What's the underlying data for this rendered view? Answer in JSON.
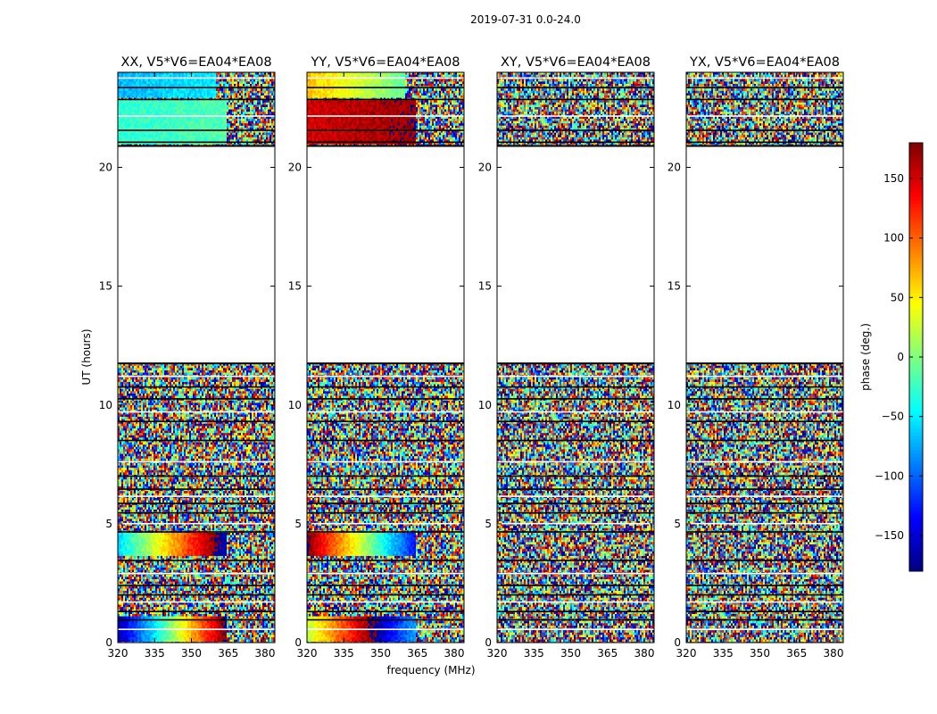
{
  "chart_data": {
    "type": "heatmap",
    "title": "2019-07-31 0.0-24.0",
    "xlabel": "frequency (MHz)",
    "ylabel": "UT (hours)",
    "xlim": [
      320,
      384
    ],
    "ylim": [
      0,
      24
    ],
    "xticks": [
      320,
      335,
      350,
      365,
      380
    ],
    "xtick_labels": [
      "320",
      "335",
      "350",
      "365",
      "380"
    ],
    "yticks": [
      0,
      5,
      10,
      15,
      20
    ],
    "ytick_labels": [
      "0",
      "5",
      "10",
      "15",
      "20"
    ],
    "colorbar": {
      "label": "phase (deg.)",
      "range": [
        -180,
        180
      ],
      "ticks": [
        150,
        100,
        50,
        0,
        -50,
        -100,
        -150
      ],
      "tick_labels": [
        "150",
        "100",
        "50",
        "0",
        "−50",
        "−100",
        "−150"
      ],
      "colormap": [
        "#00007f",
        "#0000ff",
        "#007fff",
        "#00ffff",
        "#7fff7f",
        "#ffff00",
        "#ff7f00",
        "#ff0000",
        "#7f0000"
      ]
    },
    "panels": [
      {
        "title": "XX, V5*V6=EA04*EA08",
        "coherent_blocks": [
          {
            "t0": 0.0,
            "t1": 1.1,
            "f1": 364,
            "phase_start": -170,
            "phase_slope_per_mhz": 8.0
          },
          {
            "t0": 3.6,
            "t1": 4.6,
            "f1": 364,
            "phase_start": -60,
            "phase_slope_per_mhz": 6.0
          },
          {
            "t0": 21.0,
            "t1": 22.8,
            "f1": 364,
            "phase_start": -30,
            "phase_slope_per_mhz": 0.3
          },
          {
            "t0": 22.9,
            "t1": 24.0,
            "f1": 360,
            "phase_start": -70,
            "phase_slope_per_mhz": 0.5
          }
        ]
      },
      {
        "title": "YY, V5*V6=EA04*EA08",
        "coherent_blocks": [
          {
            "t0": 0.0,
            "t1": 1.1,
            "f1": 364,
            "phase_start": 20,
            "phase_slope_per_mhz": 6.0
          },
          {
            "t0": 3.6,
            "t1": 4.6,
            "f1": 364,
            "phase_start": 180,
            "phase_slope_per_mhz": -7.0
          },
          {
            "t0": 21.0,
            "t1": 22.8,
            "f1": 364,
            "phase_start": 150,
            "phase_slope_per_mhz": 0.5
          },
          {
            "t0": 22.9,
            "t1": 24.0,
            "f1": 360,
            "phase_start": 70,
            "phase_slope_per_mhz": -2.0
          }
        ]
      },
      {
        "title": "XY, V5*V6=EA04*EA08",
        "coherent_blocks": []
      },
      {
        "title": "YX, V5*V6=EA04*EA08",
        "coherent_blocks": []
      }
    ],
    "data_intervals_ut": [
      [
        0.0,
        11.75
      ],
      [
        20.9,
        24.0
      ]
    ],
    "gap_interval_ut": [
      11.75,
      20.9
    ],
    "flagged_rows_ut": [
      0.55,
      0.95,
      1.3,
      1.7,
      2.0,
      2.4,
      2.9,
      3.45,
      4.65,
      5.0,
      5.45,
      5.85,
      6.15,
      6.45,
      7.0,
      7.6,
      8.5,
      9.3,
      9.7,
      10.25,
      10.75,
      11.2,
      21.05,
      21.55,
      22.15,
      22.85,
      23.35,
      23.75
    ]
  }
}
